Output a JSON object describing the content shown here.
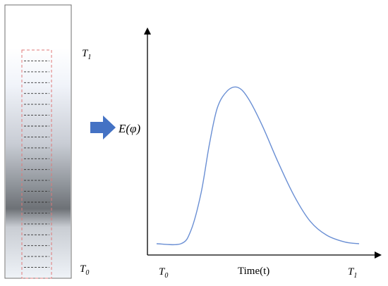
{
  "labels": {
    "t1_left": {
      "main": "T",
      "sub": "1"
    },
    "t0_left": {
      "main": "T",
      "sub": "0"
    },
    "energy": "E(φ)",
    "x_axis_start": {
      "main": "T",
      "sub": "0"
    },
    "x_axis_title": "Time(t)",
    "x_axis_end": {
      "main": "T",
      "sub": "1"
    }
  },
  "slice_count": 20,
  "colors": {
    "frame": "#6f6f6f",
    "slice_box": "#e07878",
    "slice_lines": "#333333",
    "arrow": "#4472c4",
    "curve": "#6a8fd4",
    "axis": "#000000"
  },
  "curve_data": {
    "x_label": "Time(t)",
    "y_label": "E(φ)",
    "x_range": [
      "T0",
      "T1"
    ],
    "shape": "flat baseline from T0, rising to a single peak, then decaying toward T1",
    "points": [
      [
        0.0,
        0.04
      ],
      [
        0.12,
        0.04
      ],
      [
        0.17,
        0.12
      ],
      [
        0.22,
        0.34
      ],
      [
        0.26,
        0.62
      ],
      [
        0.3,
        0.84
      ],
      [
        0.35,
        0.94
      ],
      [
        0.4,
        0.96
      ],
      [
        0.45,
        0.9
      ],
      [
        0.52,
        0.74
      ],
      [
        0.6,
        0.52
      ],
      [
        0.68,
        0.32
      ],
      [
        0.76,
        0.17
      ],
      [
        0.84,
        0.09
      ],
      [
        0.93,
        0.05
      ],
      [
        1.0,
        0.04
      ]
    ]
  }
}
